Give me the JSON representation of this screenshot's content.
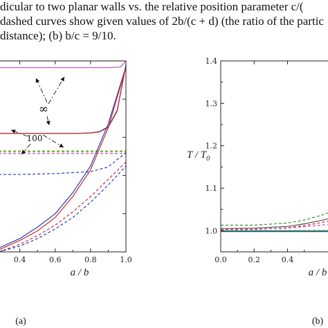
{
  "caption": {
    "line1": "dicular to two planar walls vs.  the relative position parameter c/(",
    "line2": "dashed curves show given values of 2b/(c + d) (the ratio of the partic",
    "line3": "distance); (b) b/c = 9/10."
  },
  "chart_data": [
    {
      "type": "line",
      "panel_label": "(a)",
      "xlabel": "a / b",
      "ylabel": "",
      "xlim": [
        0.28,
        1.0
      ],
      "ylim": [
        0.0,
        1.0
      ],
      "x_ticks": [
        "0.4",
        "0.6",
        "0.8",
        "1.0"
      ],
      "x_tick_values": [
        0.4,
        0.6,
        0.8,
        1.0
      ],
      "annotations": [
        "∞",
        "100"
      ],
      "series": [
        {
          "color": "#2a9a2a",
          "style": "solid",
          "x": [
            0.28,
            0.6,
            0.9,
            0.97,
            1.0
          ],
          "y": [
            1.0,
            1.0,
            1.0,
            1.0,
            1.0
          ]
        },
        {
          "color": "#cc44cc",
          "style": "solid",
          "x": [
            0.28,
            0.6,
            0.9,
            0.97,
            1.0
          ],
          "y": [
            0.965,
            0.965,
            0.965,
            0.968,
            1.0
          ]
        },
        {
          "color": "#1f3fbf",
          "style": "solid",
          "x": [
            0.28,
            0.5,
            0.7,
            0.8,
            0.85,
            0.9,
            0.95,
            1.0
          ],
          "y": [
            0.62,
            0.62,
            0.62,
            0.623,
            0.63,
            0.655,
            0.74,
            0.98
          ]
        },
        {
          "color": "#cc2a2a",
          "style": "solid",
          "x": [
            0.28,
            0.5,
            0.7,
            0.8,
            0.85,
            0.9,
            0.95,
            1.0
          ],
          "y": [
            0.62,
            0.62,
            0.62,
            0.622,
            0.628,
            0.652,
            0.735,
            0.975
          ]
        },
        {
          "color": "#c8c83a",
          "style": "dashed",
          "x": [
            0.28,
            1.0
          ],
          "y": [
            0.53,
            0.53
          ]
        },
        {
          "color": "#2a9a2a",
          "style": "dashed",
          "x": [
            0.28,
            1.0
          ],
          "y": [
            0.525,
            0.525
          ]
        },
        {
          "color": "#cc44cc",
          "style": "dashed",
          "x": [
            0.28,
            1.0
          ],
          "y": [
            0.515,
            0.515
          ]
        },
        {
          "color": "#1f3fbf",
          "style": "dashed",
          "x": [
            0.28,
            0.4,
            0.6,
            0.8,
            0.9,
            1.0
          ],
          "y": [
            0.405,
            0.405,
            0.41,
            0.42,
            0.445,
            0.52
          ]
        },
        {
          "color": "#1f3fbf",
          "style": "solid",
          "x": [
            0.28,
            0.4,
            0.5,
            0.6,
            0.7,
            0.8,
            0.9,
            1.0
          ],
          "y": [
            0.02,
            0.07,
            0.13,
            0.2,
            0.31,
            0.45,
            0.67,
            0.97
          ]
        },
        {
          "color": "#cc2a2a",
          "style": "solid",
          "x": [
            0.28,
            0.4,
            0.5,
            0.6,
            0.7,
            0.8,
            0.9,
            1.0
          ],
          "y": [
            0.01,
            0.06,
            0.11,
            0.18,
            0.29,
            0.43,
            0.65,
            0.965
          ]
        },
        {
          "color": "#cc2a2a",
          "style": "dashed",
          "x": [
            0.28,
            0.4,
            0.5,
            0.6,
            0.7,
            0.8,
            0.9,
            1.0
          ],
          "y": [
            0.0,
            0.04,
            0.085,
            0.14,
            0.21,
            0.29,
            0.38,
            0.47
          ]
        },
        {
          "color": "#1f3fbf",
          "style": "dashed",
          "x": [
            0.28,
            0.4,
            0.5,
            0.6,
            0.7,
            0.8,
            0.9,
            1.0
          ],
          "y": [
            0.0,
            0.03,
            0.07,
            0.12,
            0.18,
            0.26,
            0.35,
            0.45
          ]
        }
      ]
    },
    {
      "type": "line",
      "panel_label": "(b)",
      "xlabel": "a / b",
      "ylabel": "T / T0",
      "xlim": [
        0.0,
        0.75
      ],
      "ylim": [
        0.95,
        1.4
      ],
      "x_ticks": [
        "0.0",
        "0.2",
        "0.4"
      ],
      "x_tick_values": [
        0.0,
        0.2,
        0.4
      ],
      "y_ticks": [
        "1.0",
        "1.1",
        "1.2",
        "1.3",
        "1.4"
      ],
      "y_tick_values": [
        1.0,
        1.1,
        1.2,
        1.3,
        1.4
      ],
      "series": [
        {
          "color": "#2a9a2a",
          "style": "dashed",
          "x": [
            0.0,
            0.2,
            0.4,
            0.5,
            0.6,
            0.7,
            0.75
          ],
          "y": [
            1.013,
            1.013,
            1.018,
            1.025,
            1.036,
            1.05,
            1.06
          ]
        },
        {
          "color": "#555555",
          "style": "solid",
          "x": [
            0.0,
            0.2,
            0.4,
            0.5,
            0.6,
            0.7,
            0.75
          ],
          "y": [
            1.005,
            1.006,
            1.01,
            1.016,
            1.024,
            1.033,
            1.038
          ]
        },
        {
          "color": "#cc2a2a",
          "style": "dashed",
          "x": [
            0.0,
            0.2,
            0.4,
            0.5,
            0.6,
            0.7,
            0.75
          ],
          "y": [
            1.002,
            1.003,
            1.007,
            1.012,
            1.019,
            1.027,
            1.032
          ]
        },
        {
          "color": "#cc44cc",
          "style": "dashed",
          "x": [
            0.0,
            0.2,
            0.4,
            0.6,
            0.75
          ],
          "y": [
            1.004,
            1.004,
            1.006,
            1.013,
            1.02
          ]
        },
        {
          "color": "#c8c83a",
          "style": "dashed",
          "x": [
            0.0,
            0.75
          ],
          "y": [
            1.001,
            1.001
          ]
        },
        {
          "color": "#2a9a2a",
          "style": "solid",
          "x": [
            0.0,
            0.75
          ],
          "y": [
            1.0,
            1.0
          ]
        },
        {
          "color": "#1f3fbf",
          "style": "solid",
          "x": [
            0.0,
            0.75
          ],
          "y": [
            0.998,
            0.998
          ]
        }
      ]
    }
  ]
}
